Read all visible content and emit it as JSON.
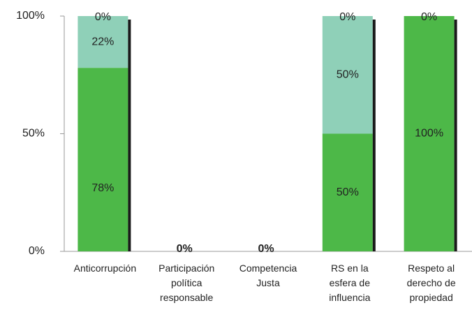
{
  "chart_data": {
    "type": "stacked_bar",
    "categories": [
      "Anticorrupción",
      "Participación\npolítica\nresponsable",
      "Competencia\nJusta",
      "RS en la\nesfera de\ninfluencia",
      "Respeto al\nderecho de\npropiedad"
    ],
    "series": [
      {
        "color": "#4db848",
        "values": [
          78,
          0,
          0,
          50,
          100
        ],
        "value_labels": [
          "78%",
          "0%",
          "0%",
          "50%",
          "100%"
        ]
      },
      {
        "color": "#8fd0b8",
        "values": [
          22,
          0,
          0,
          50,
          0
        ],
        "value_labels": [
          "22%",
          null,
          null,
          "50%",
          null
        ]
      },
      {
        "color": "#6fbf73",
        "values": [
          0,
          null,
          null,
          0,
          0
        ],
        "value_labels": [
          "0%",
          null,
          null,
          "0%",
          "0%"
        ]
      }
    ],
    "ylim": [
      0,
      100
    ],
    "yticks": [
      {
        "value": 0,
        "label": "0%"
      },
      {
        "value": 50,
        "label": "50%"
      },
      {
        "value": 100,
        "label": "100%"
      }
    ]
  }
}
